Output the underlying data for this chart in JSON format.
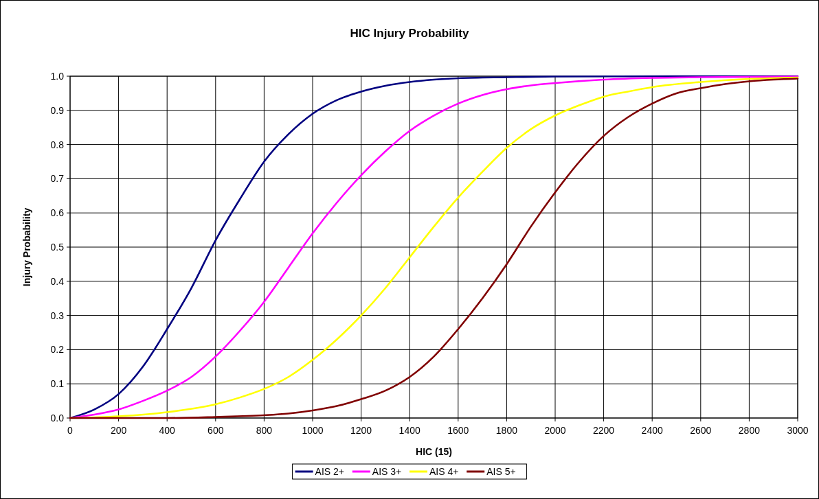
{
  "chart_data": {
    "type": "line",
    "title": "HIC Injury Probability",
    "xlabel": "HIC (15)",
    "ylabel": "Injury Probability",
    "xlim": [
      0,
      3000
    ],
    "xticks": [
      0,
      200,
      400,
      600,
      800,
      1000,
      1200,
      1400,
      1600,
      1800,
      2000,
      2200,
      2400,
      2600,
      2800,
      3000
    ],
    "ylim": [
      0,
      1
    ],
    "yticks": [
      {
        "value": 0,
        "label": "0.0"
      },
      {
        "value": 0.1,
        "label": "0.1"
      },
      {
        "value": 0.2,
        "label": "0.2"
      },
      {
        "value": 0.3,
        "label": "0.3"
      },
      {
        "value": 0.4,
        "label": "0.4"
      },
      {
        "value": 0.5,
        "label": "0.5"
      },
      {
        "value": 0.6,
        "label": "0.6"
      },
      {
        "value": 0.7,
        "label": "0.7"
      },
      {
        "value": 0.8,
        "label": "0.8"
      },
      {
        "value": 0.9,
        "label": "0.9"
      },
      {
        "value": 1,
        "label": "1.0"
      }
    ],
    "grid": true,
    "legend": "bottom",
    "marker": "none",
    "line_style": "solid",
    "series": [
      {
        "name": "AIS 2+",
        "color": "#000080",
        "x": [
          0,
          100,
          200,
          300,
          400,
          500,
          600,
          700,
          800,
          900,
          1000,
          1100,
          1200,
          1300,
          1400,
          1500,
          1600,
          1800,
          2000,
          2500,
          3000
        ],
        "values": [
          0,
          0.025,
          0.07,
          0.15,
          0.26,
          0.38,
          0.52,
          0.64,
          0.75,
          0.83,
          0.89,
          0.93,
          0.955,
          0.972,
          0.983,
          0.99,
          0.994,
          0.997,
          0.999,
          1,
          1
        ]
      },
      {
        "name": "AIS 3+",
        "color": "#ff00ff",
        "x": [
          0,
          100,
          200,
          300,
          400,
          500,
          600,
          700,
          800,
          900,
          1000,
          1100,
          1200,
          1300,
          1400,
          1500,
          1600,
          1700,
          1800,
          1900,
          2000,
          2200,
          2400,
          2600,
          3000
        ],
        "values": [
          0,
          0.01,
          0.025,
          0.05,
          0.08,
          0.12,
          0.18,
          0.255,
          0.34,
          0.44,
          0.54,
          0.63,
          0.71,
          0.78,
          0.84,
          0.885,
          0.92,
          0.945,
          0.962,
          0.973,
          0.98,
          0.99,
          0.995,
          0.997,
          0.999
        ]
      },
      {
        "name": "AIS 4+",
        "color": "#ffff00",
        "x": [
          0,
          200,
          400,
          600,
          700,
          800,
          900,
          1000,
          1100,
          1200,
          1300,
          1400,
          1500,
          1600,
          1700,
          1800,
          1900,
          2000,
          2100,
          2200,
          2300,
          2400,
          2600,
          2800,
          3000
        ],
        "values": [
          0,
          0.005,
          0.017,
          0.04,
          0.06,
          0.085,
          0.12,
          0.17,
          0.23,
          0.3,
          0.38,
          0.47,
          0.56,
          0.645,
          0.72,
          0.79,
          0.845,
          0.885,
          0.915,
          0.94,
          0.955,
          0.968,
          0.983,
          0.992,
          0.996
        ]
      },
      {
        "name": "AIS 5+",
        "color": "#800000",
        "x": [
          0,
          400,
          600,
          800,
          900,
          1000,
          1100,
          1200,
          1300,
          1400,
          1500,
          1600,
          1700,
          1800,
          1900,
          2000,
          2100,
          2200,
          2300,
          2400,
          2500,
          2600,
          2700,
          2800,
          2900,
          3000
        ],
        "values": [
          0,
          0,
          0.003,
          0.008,
          0.013,
          0.022,
          0.035,
          0.055,
          0.08,
          0.12,
          0.18,
          0.26,
          0.35,
          0.45,
          0.56,
          0.66,
          0.75,
          0.825,
          0.88,
          0.92,
          0.95,
          0.965,
          0.977,
          0.985,
          0.99,
          0.993
        ]
      }
    ]
  }
}
